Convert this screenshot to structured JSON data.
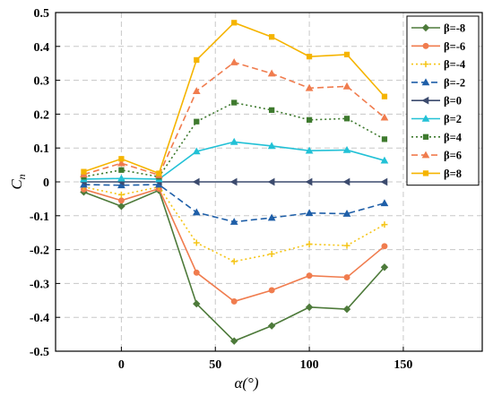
{
  "chart_data": {
    "type": "line",
    "title": "",
    "xlabel": "α(°)",
    "ylabel": "Cn",
    "xlim": [
      -35,
      192
    ],
    "ylim": [
      -0.5,
      0.5
    ],
    "x_ticks": [
      0,
      50,
      100,
      150
    ],
    "x_tick_labels": [
      "0",
      "50",
      "100",
      "150"
    ],
    "y_ticks": [
      -0.5,
      -0.4,
      -0.3,
      -0.2,
      -0.1,
      0,
      0.1,
      0.2,
      0.3,
      0.4,
      0.5
    ],
    "y_tick_labels": [
      "-0.5",
      "-0.4",
      "-0.3",
      "-0.2",
      "-0.1",
      "0",
      "0.1",
      "0.2",
      "0.3",
      "0.4",
      "0.5"
    ],
    "grid": true,
    "legend_position": "top-right",
    "x": [
      -20,
      0,
      20,
      40,
      60,
      80,
      100,
      120,
      140
    ],
    "series": [
      {
        "name": "β=-8",
        "color": "#4d7a3a",
        "dash": "solid",
        "marker": "diamond",
        "values": [
          -0.03,
          -0.072,
          -0.025,
          -0.36,
          -0.47,
          -0.425,
          -0.37,
          -0.376,
          -0.252
        ]
      },
      {
        "name": "β=-6",
        "color": "#f07c4e",
        "dash": "solid",
        "marker": "circle",
        "values": [
          -0.022,
          -0.055,
          -0.02,
          -0.268,
          -0.353,
          -0.32,
          -0.277,
          -0.282,
          -0.19
        ]
      },
      {
        "name": "β=-4",
        "color": "#f5c518",
        "dash": "dot",
        "marker": "plus",
        "values": [
          -0.015,
          -0.038,
          -0.015,
          -0.18,
          -0.235,
          -0.213,
          -0.184,
          -0.188,
          -0.126
        ]
      },
      {
        "name": "β=-2",
        "color": "#1f5fa8",
        "dash": "dash",
        "marker": "triangle",
        "values": [
          -0.008,
          -0.01,
          -0.008,
          -0.09,
          -0.118,
          -0.106,
          -0.092,
          -0.094,
          -0.063
        ]
      },
      {
        "name": "β=0",
        "color": "#3c4b6e",
        "dash": "solid",
        "marker": "triangle-left",
        "values": [
          0,
          0,
          0,
          0,
          0,
          0,
          0,
          0,
          0
        ]
      },
      {
        "name": "β=2",
        "color": "#22c1d6",
        "dash": "solid",
        "marker": "triangle",
        "values": [
          0.008,
          0.01,
          0.008,
          0.09,
          0.118,
          0.106,
          0.092,
          0.094,
          0.063
        ]
      },
      {
        "name": "β=4",
        "color": "#3e7a2e",
        "dash": "dot",
        "marker": "square",
        "values": [
          0.015,
          0.035,
          0.015,
          0.178,
          0.234,
          0.212,
          0.183,
          0.187,
          0.126
        ]
      },
      {
        "name": "β=6",
        "color": "#f07c4e",
        "dash": "dash",
        "marker": "triangle",
        "values": [
          0.022,
          0.055,
          0.02,
          0.268,
          0.353,
          0.32,
          0.277,
          0.282,
          0.19
        ]
      },
      {
        "name": "β=8",
        "color": "#f5b400",
        "dash": "solid",
        "marker": "square",
        "values": [
          0.03,
          0.068,
          0.025,
          0.36,
          0.47,
          0.428,
          0.37,
          0.376,
          0.252
        ]
      }
    ]
  }
}
